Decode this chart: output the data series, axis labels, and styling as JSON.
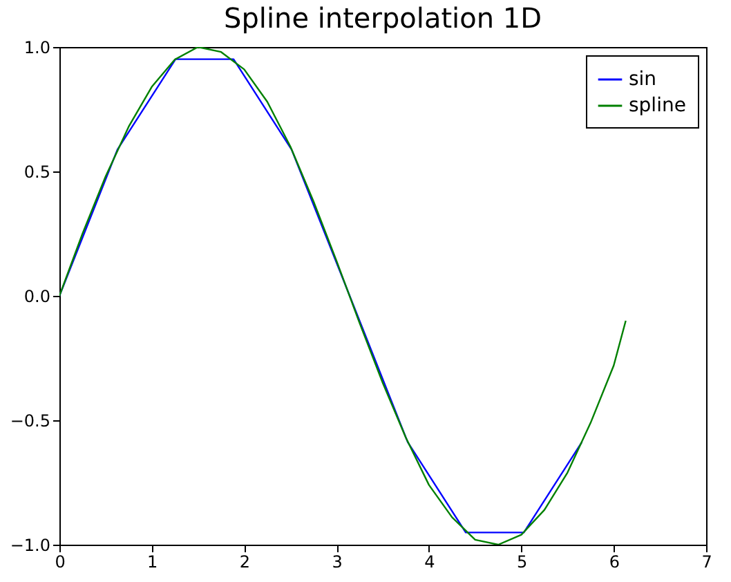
{
  "chart_data": {
    "type": "line",
    "title": "Spline interpolation 1D",
    "xlim": [
      0,
      7
    ],
    "xticks": [
      0,
      1,
      2,
      3,
      4,
      5,
      6,
      7
    ],
    "ylim": [
      -1,
      1
    ],
    "yticks": [
      {
        "value": -1,
        "label": "−1.0"
      },
      {
        "value": -0.5,
        "label": "−0.5"
      },
      {
        "value": 0,
        "label": "0.0"
      },
      {
        "value": 0.5,
        "label": "0.5"
      },
      {
        "value": 1,
        "label": "1.0"
      }
    ],
    "grid": false,
    "legend": "top right",
    "marker": "none",
    "line_style": "solid",
    "series": [
      {
        "name": "sin",
        "color": "#0000ff",
        "x": [
          0,
          0.628,
          1.257,
          1.885,
          2.513,
          3.142,
          3.77,
          4.398,
          5.027,
          5.655
        ],
        "values": [
          0,
          0.588,
          0.951,
          0.951,
          0.588,
          0,
          -0.588,
          -0.951,
          -0.951,
          -0.588
        ]
      },
      {
        "name": "spline",
        "color": "#008000",
        "x": [
          0,
          0.25,
          0.5,
          0.75,
          1,
          1.25,
          1.5,
          1.75,
          2,
          2.25,
          2.5,
          2.75,
          3,
          3.25,
          3.5,
          3.75,
          4,
          4.25,
          4.5,
          4.75,
          5,
          5.25,
          5.5,
          5.75,
          6,
          6.13
        ],
        "values": [
          0,
          0.25,
          0.48,
          0.68,
          0.84,
          0.95,
          1.0,
          0.98,
          0.91,
          0.78,
          0.6,
          0.38,
          0.14,
          -0.11,
          -0.35,
          -0.57,
          -0.76,
          -0.89,
          -0.98,
          -1.0,
          -0.96,
          -0.86,
          -0.71,
          -0.51,
          -0.28,
          -0.1
        ]
      }
    ]
  }
}
